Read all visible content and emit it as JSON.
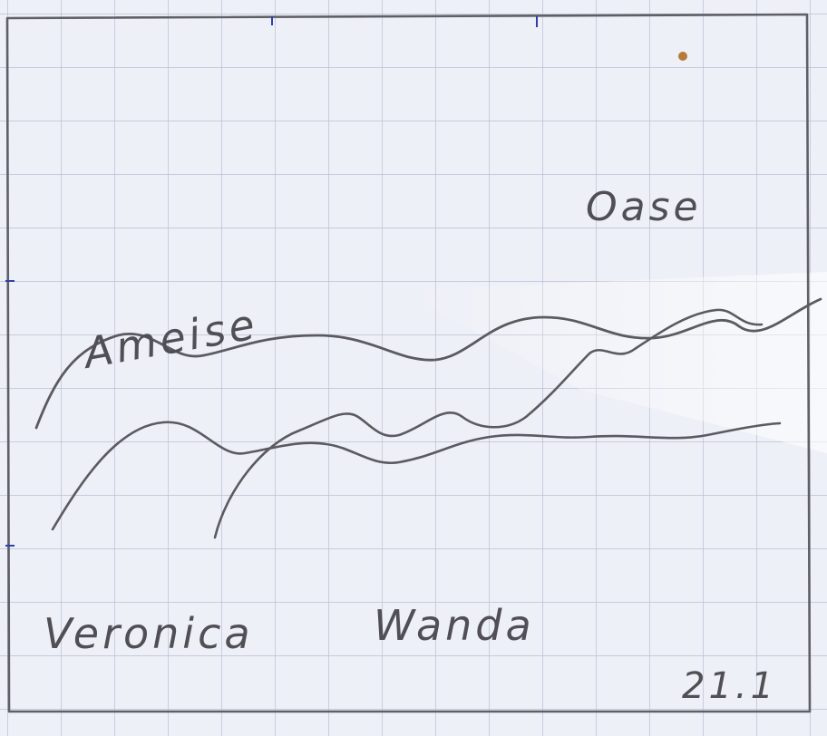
{
  "labels": {
    "ameise": "Ameise",
    "oase": "Oase",
    "veronica": "Veronica",
    "wanda": "Wanda",
    "page_number": "21.1"
  },
  "colors": {
    "paper": "#eef0f7",
    "grid": "#b9bfd3",
    "pencil": "#5a5a60",
    "pencil_light": "#7a7a80",
    "ink_mark": "#2f3fae",
    "dot": "#b77a3a"
  }
}
